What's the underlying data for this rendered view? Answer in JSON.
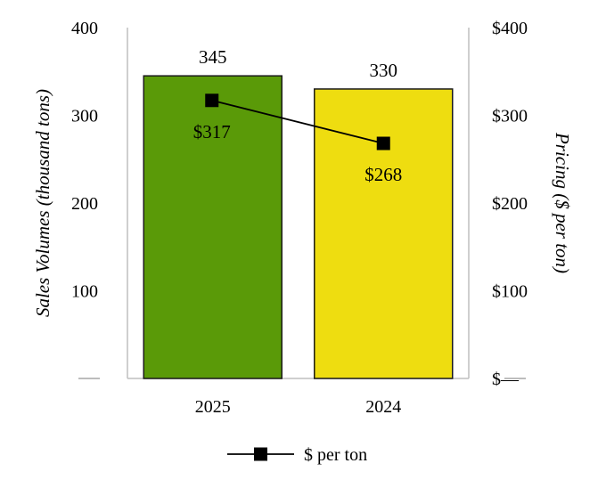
{
  "chart_data": {
    "type": "bar",
    "categories": [
      "2025",
      "2024"
    ],
    "series": [
      {
        "name": "",
        "axis": "left",
        "type": "bar",
        "values": [
          345,
          330
        ],
        "value_labels": [
          "345",
          "330"
        ],
        "colors": [
          "#5a9a08",
          "#eedd10"
        ]
      },
      {
        "name": "$ per ton",
        "axis": "right",
        "type": "line",
        "values": [
          317,
          268
        ],
        "value_labels": [
          "$317",
          "$268"
        ],
        "color": "#000000",
        "marker": "square"
      }
    ],
    "ylabel": "Sales Volumes (thousand tons)",
    "y2label": "Pricing ($ per ton)",
    "ylim": [
      0,
      400
    ],
    "y2lim": [
      0,
      400
    ],
    "yticks": [
      400,
      300,
      200,
      100
    ],
    "yticklabels": [
      "400",
      "300",
      "200",
      "100"
    ],
    "y2ticks": [
      400,
      300,
      200,
      100,
      0
    ],
    "y2ticklabels": [
      "$400",
      "$300",
      "$200",
      "$100",
      "$—"
    ],
    "grid": false,
    "legend": "bottom-center"
  }
}
